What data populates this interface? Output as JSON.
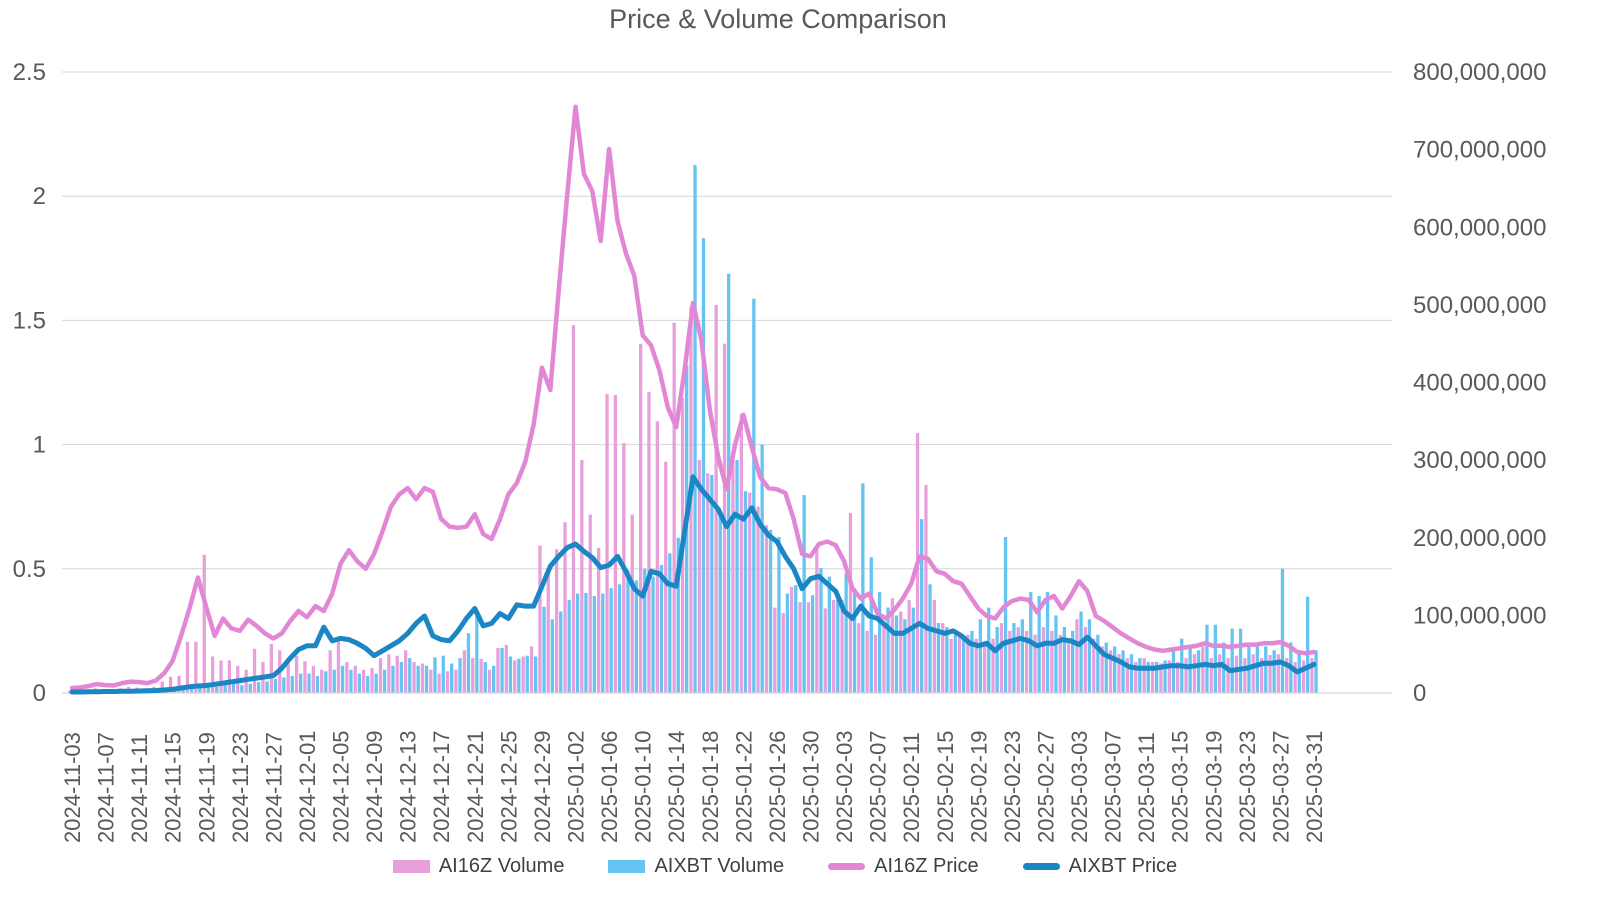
{
  "title": "Price & Volume Comparison",
  "colors": {
    "ai16z_bar": "#E8A0DC",
    "aixbt_bar": "#66C4F2",
    "ai16z_line": "#E287D6",
    "aixbt_line": "#1B86C4",
    "gridline": "#D6D6D6",
    "axis_text": "#595959",
    "title_text": "#595959",
    "legend_text": "#404040"
  },
  "legend": [
    {
      "label": "AI16Z Volume",
      "type": "bar",
      "color": "#E8A0DC"
    },
    {
      "label": "AIXBT Volume",
      "type": "bar",
      "color": "#66C4F2"
    },
    {
      "label": "AI16Z Price",
      "type": "line",
      "color": "#E287D6"
    },
    {
      "label": "AIXBT Price",
      "type": "line",
      "color": "#1B86C4"
    }
  ],
  "chart_data": {
    "type": "bar+line combo (dual axis)",
    "x_start": "2024-11-03",
    "x_frequency": "daily",
    "grid": "horizontal only",
    "legend_position": "bottom",
    "left_axis": {
      "label": "price",
      "min": 0,
      "max": 2.5,
      "ticks": [
        "0",
        "0.5",
        "1",
        "1.5",
        "2",
        "2.5"
      ]
    },
    "right_axis": {
      "label": "volume",
      "min": 0,
      "max": 800000000,
      "ticks": [
        "0",
        "100,000,000",
        "200,000,000",
        "300,000,000",
        "400,000,000",
        "500,000,000",
        "600,000,000",
        "700,000,000",
        "800,000,000"
      ]
    },
    "x_tick_labels": [
      "2024-11-03",
      "2024-11-07",
      "2024-11-11",
      "2024-11-15",
      "2024-11-19",
      "2024-11-23",
      "2024-11-27",
      "2024-12-01",
      "2024-12-05",
      "2024-12-09",
      "2024-12-13",
      "2024-12-17",
      "2024-12-21",
      "2024-12-25",
      "2024-12-29",
      "2025-01-02",
      "2025-01-06",
      "2025-01-10",
      "2025-01-14",
      "2025-01-18",
      "2025-01-22",
      "2025-01-26",
      "2025-01-30",
      "2025-02-03",
      "2025-02-07",
      "2025-02-11",
      "2025-02-15",
      "2025-02-19",
      "2025-02-23",
      "2025-02-27",
      "2025-03-03",
      "2025-03-07",
      "2025-03-11",
      "2025-03-15",
      "2025-03-19",
      "2025-03-23",
      "2025-03-27",
      "2025-03-31"
    ],
    "series": [
      {
        "name": "AI16Z Volume",
        "type": "bar",
        "axis": "right",
        "unit": "millions",
        "color": "#E8A0DC",
        "values": [
          3,
          3,
          4,
          6,
          5,
          4,
          6,
          8,
          7,
          6,
          8,
          15,
          21,
          22,
          66,
          66,
          178,
          47,
          42,
          42,
          35,
          30,
          57,
          40,
          63,
          55,
          45,
          48,
          41,
          35,
          30,
          55,
          68,
          40,
          35,
          30,
          32,
          45,
          50,
          48,
          55,
          40,
          38,
          30,
          25,
          28,
          30,
          55,
          45,
          44,
          30,
          58,
          62,
          42,
          47,
          60,
          190,
          160,
          185,
          220,
          474,
          300,
          230,
          187,
          385,
          384,
          322,
          230,
          450,
          388,
          350,
          298,
          477,
          380,
          497,
          300,
          283,
          500,
          450,
          310,
          360,
          258,
          240,
          216,
          110,
          103,
          137,
          117,
          117,
          186,
          109,
          120,
          120,
          232,
          90,
          80,
          75,
          90,
          122,
          105,
          120,
          335,
          268,
          120,
          90,
          70,
          75,
          75,
          70,
          65,
          70,
          90,
          80,
          85,
          80,
          75,
          85,
          80,
          75,
          70,
          95,
          85,
          70,
          60,
          55,
          50,
          45,
          40,
          45,
          40,
          38,
          42,
          40,
          45,
          50,
          60,
          45,
          50,
          45,
          48,
          45,
          50,
          45,
          49,
          50,
          45,
          40,
          42,
          45
        ]
      },
      {
        "name": "AIXBT Volume",
        "type": "bar",
        "axis": "right",
        "unit": "millions",
        "color": "#66C4F2",
        "values": [
          0,
          0,
          0,
          0,
          0,
          0,
          0,
          0,
          0,
          0,
          1,
          2,
          3,
          4,
          5,
          6,
          8,
          8,
          10,
          12,
          10,
          12,
          14,
          15,
          18,
          20,
          22,
          25,
          25,
          22,
          28,
          30,
          35,
          30,
          25,
          22,
          25,
          30,
          35,
          40,
          45,
          35,
          35,
          46,
          48,
          38,
          45,
          77,
          107,
          40,
          35,
          58,
          47,
          44,
          48,
          47,
          111,
          95,
          105,
          120,
          128,
          129,
          125,
          128,
          135,
          140,
          158,
          145,
          160,
          150,
          165,
          180,
          200,
          422,
          680,
          586,
          281,
          230,
          540,
          300,
          260,
          508,
          320,
          210,
          201,
          128,
          139,
          255,
          126,
          161,
          150,
          120,
          154,
          135,
          270,
          175,
          130,
          110,
          100,
          95,
          110,
          224,
          140,
          90,
          85,
          75,
          70,
          80,
          95,
          110,
          85,
          201,
          90,
          95,
          130,
          125,
          130,
          100,
          85,
          80,
          105,
          95,
          75,
          65,
          60,
          55,
          50,
          45,
          40,
          40,
          42,
          55,
          70,
          60,
          55,
          88,
          88,
          65,
          83,
          83,
          60,
          65,
          60,
          55,
          160,
          65,
          55,
          124,
          55
        ]
      },
      {
        "name": "AI16Z Price",
        "type": "line",
        "axis": "left",
        "color": "#E287D6",
        "values": [
          0.02,
          0.022,
          0.028,
          0.036,
          0.032,
          0.03,
          0.04,
          0.046,
          0.044,
          0.04,
          0.05,
          0.08,
          0.13,
          0.23,
          0.34,
          0.465,
          0.345,
          0.23,
          0.3,
          0.26,
          0.25,
          0.295,
          0.27,
          0.24,
          0.22,
          0.24,
          0.29,
          0.33,
          0.305,
          0.35,
          0.33,
          0.4,
          0.52,
          0.575,
          0.53,
          0.5,
          0.56,
          0.65,
          0.75,
          0.8,
          0.825,
          0.78,
          0.825,
          0.81,
          0.7,
          0.67,
          0.665,
          0.67,
          0.72,
          0.64,
          0.62,
          0.7,
          0.8,
          0.845,
          0.93,
          1.08,
          1.31,
          1.22,
          1.62,
          2.0,
          2.36,
          2.09,
          2.02,
          1.82,
          2.19,
          1.9,
          1.77,
          1.68,
          1.44,
          1.4,
          1.3,
          1.15,
          1.07,
          1.3,
          1.57,
          1.42,
          1.14,
          0.95,
          0.82,
          1.0,
          1.12,
          0.99,
          0.87,
          0.825,
          0.82,
          0.805,
          0.7,
          0.56,
          0.55,
          0.6,
          0.61,
          0.595,
          0.53,
          0.42,
          0.38,
          0.4,
          0.32,
          0.3,
          0.335,
          0.38,
          0.44,
          0.55,
          0.54,
          0.49,
          0.48,
          0.45,
          0.44,
          0.39,
          0.34,
          0.31,
          0.3,
          0.345,
          0.37,
          0.38,
          0.375,
          0.325,
          0.375,
          0.39,
          0.34,
          0.39,
          0.45,
          0.41,
          0.31,
          0.29,
          0.265,
          0.24,
          0.22,
          0.2,
          0.185,
          0.175,
          0.17,
          0.175,
          0.18,
          0.185,
          0.19,
          0.2,
          0.19,
          0.19,
          0.185,
          0.19,
          0.195,
          0.195,
          0.2,
          0.2,
          0.205,
          0.19,
          0.165,
          0.16,
          0.165
        ]
      },
      {
        "name": "AIXBT Price",
        "type": "line",
        "axis": "left",
        "color": "#1B86C4",
        "values": [
          0.004,
          0.004,
          0.005,
          0.005,
          0.006,
          0.006,
          0.007,
          0.007,
          0.008,
          0.009,
          0.01,
          0.012,
          0.015,
          0.02,
          0.025,
          0.028,
          0.03,
          0.035,
          0.04,
          0.045,
          0.05,
          0.055,
          0.06,
          0.065,
          0.07,
          0.1,
          0.14,
          0.175,
          0.19,
          0.19,
          0.265,
          0.21,
          0.22,
          0.215,
          0.2,
          0.18,
          0.15,
          0.17,
          0.19,
          0.21,
          0.24,
          0.28,
          0.31,
          0.23,
          0.215,
          0.21,
          0.25,
          0.3,
          0.34,
          0.27,
          0.28,
          0.32,
          0.3,
          0.355,
          0.35,
          0.35,
          0.43,
          0.51,
          0.55,
          0.585,
          0.6,
          0.57,
          0.545,
          0.505,
          0.515,
          0.55,
          0.49,
          0.42,
          0.39,
          0.49,
          0.48,
          0.44,
          0.43,
          0.65,
          0.87,
          0.82,
          0.78,
          0.74,
          0.67,
          0.72,
          0.7,
          0.745,
          0.68,
          0.635,
          0.61,
          0.55,
          0.5,
          0.42,
          0.46,
          0.47,
          0.44,
          0.41,
          0.33,
          0.3,
          0.35,
          0.31,
          0.3,
          0.27,
          0.24,
          0.24,
          0.26,
          0.28,
          0.26,
          0.25,
          0.24,
          0.25,
          0.23,
          0.2,
          0.19,
          0.2,
          0.17,
          0.2,
          0.21,
          0.22,
          0.21,
          0.19,
          0.2,
          0.2,
          0.215,
          0.21,
          0.195,
          0.225,
          0.19,
          0.155,
          0.14,
          0.125,
          0.105,
          0.1,
          0.1,
          0.1,
          0.105,
          0.11,
          0.11,
          0.105,
          0.11,
          0.115,
          0.11,
          0.115,
          0.09,
          0.095,
          0.1,
          0.11,
          0.12,
          0.12,
          0.125,
          0.11,
          0.085,
          0.1,
          0.115
        ]
      }
    ]
  }
}
